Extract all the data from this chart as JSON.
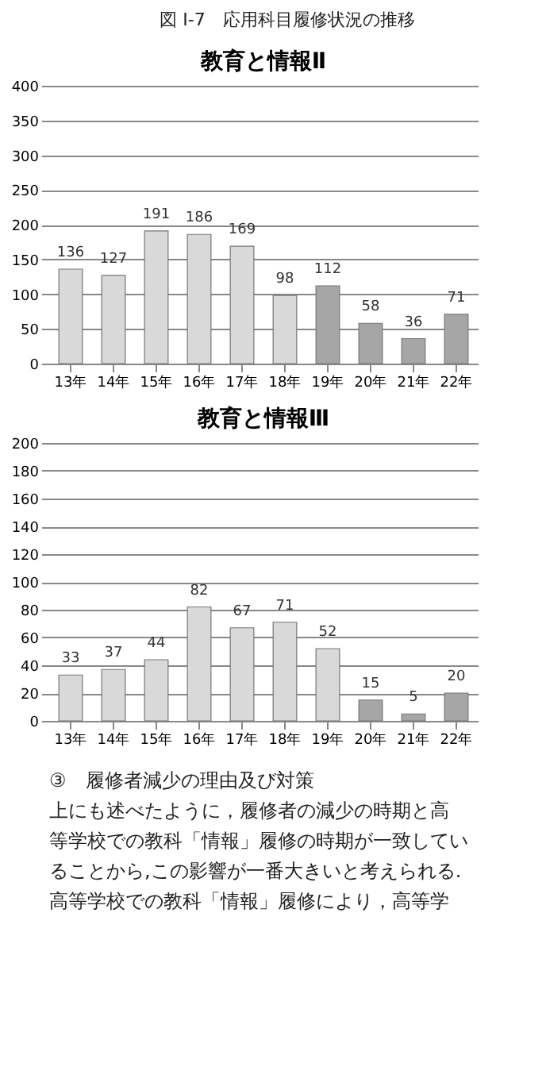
{
  "chart_data": [
    {
      "type": "bar",
      "title": "教育と情報Ⅱ",
      "annotations": [
        "図 I-7　応用科目履修状況の推移"
      ],
      "categories": [
        "13年",
        "14年",
        "15年",
        "16年",
        "17年",
        "18年",
        "19年",
        "20年",
        "21年",
        "22年"
      ],
      "values": [
        136,
        127,
        191,
        186,
        169,
        98,
        112,
        58,
        36,
        71
      ],
      "colors": [
        "#d9d9d9",
        "#d9d9d9",
        "#d9d9d9",
        "#d9d9d9",
        "#d9d9d9",
        "#d9d9d9",
        "#a6a6a6",
        "#a6a6a6",
        "#a6a6a6",
        "#a6a6a6"
      ],
      "ylim": [
        0,
        400
      ],
      "yticks": [
        0,
        50,
        100,
        150,
        200,
        250,
        300,
        350,
        400
      ],
      "grid": "y",
      "data_labels": true
    },
    {
      "type": "bar",
      "title": "教育と情報Ⅲ",
      "annotations": [
        "③　履修者減少の理由及び対策",
        "　上にも述べたように，履修者の減少の時期と高",
        "等学校での教科「情報」履修の時期が一致してい",
        "ることから,この影響が一番大きいと考えられる.",
        "　高等学校での教科「情報」履修により，高等学"
      ],
      "categories": [
        "13年",
        "14年",
        "15年",
        "16年",
        "17年",
        "18年",
        "19年",
        "20年",
        "21年",
        "22年"
      ],
      "values": [
        33,
        37,
        44,
        82,
        67,
        71,
        52,
        15,
        5,
        20
      ],
      "colors": [
        "#d9d9d9",
        "#d9d9d9",
        "#d9d9d9",
        "#d9d9d9",
        "#d9d9d9",
        "#d9d9d9",
        "#d9d9d9",
        "#a6a6a6",
        "#a6a6a6",
        "#a6a6a6"
      ],
      "ylim": [
        0,
        200
      ],
      "yticks": [
        0,
        20,
        40,
        60,
        80,
        100,
        120,
        140,
        160,
        180,
        200
      ],
      "grid": "y",
      "data_labels": true
    }
  ]
}
